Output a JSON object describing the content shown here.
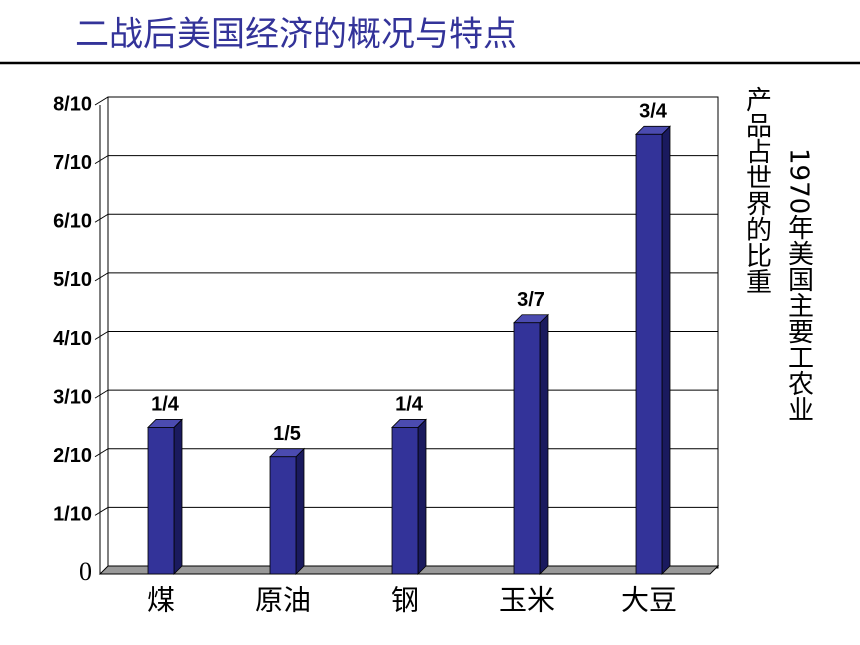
{
  "title": "二战后美国经济的概况与特点",
  "chart_data": {
    "type": "bar",
    "categories": [
      "煤",
      "原油",
      "钢",
      "玉米",
      "大豆"
    ],
    "values": [
      0.25,
      0.2,
      0.25,
      0.428571,
      0.75
    ],
    "value_labels": [
      "1/4",
      "1/5",
      "1/4",
      "3/7",
      "3/4"
    ],
    "color": "#333399",
    "ylim": [
      0,
      0.8
    ],
    "yticks": [
      0,
      {
        "value": 0.1,
        "label": "1/10"
      },
      {
        "value": 0.2,
        "label": "2/10"
      },
      {
        "value": 0.3,
        "label": "3/10"
      },
      {
        "value": 0.4,
        "label": "4/10"
      },
      {
        "value": 0.5,
        "label": "5/10"
      },
      {
        "value": 0.6,
        "label": "6/10"
      },
      {
        "value": 0.7,
        "label": "7/10"
      },
      {
        "value": 0.8,
        "label": "8/10"
      }
    ],
    "grid": true,
    "y_label_lines": [
      "1970年美国主要工农业",
      "产品占世界的比重"
    ]
  }
}
